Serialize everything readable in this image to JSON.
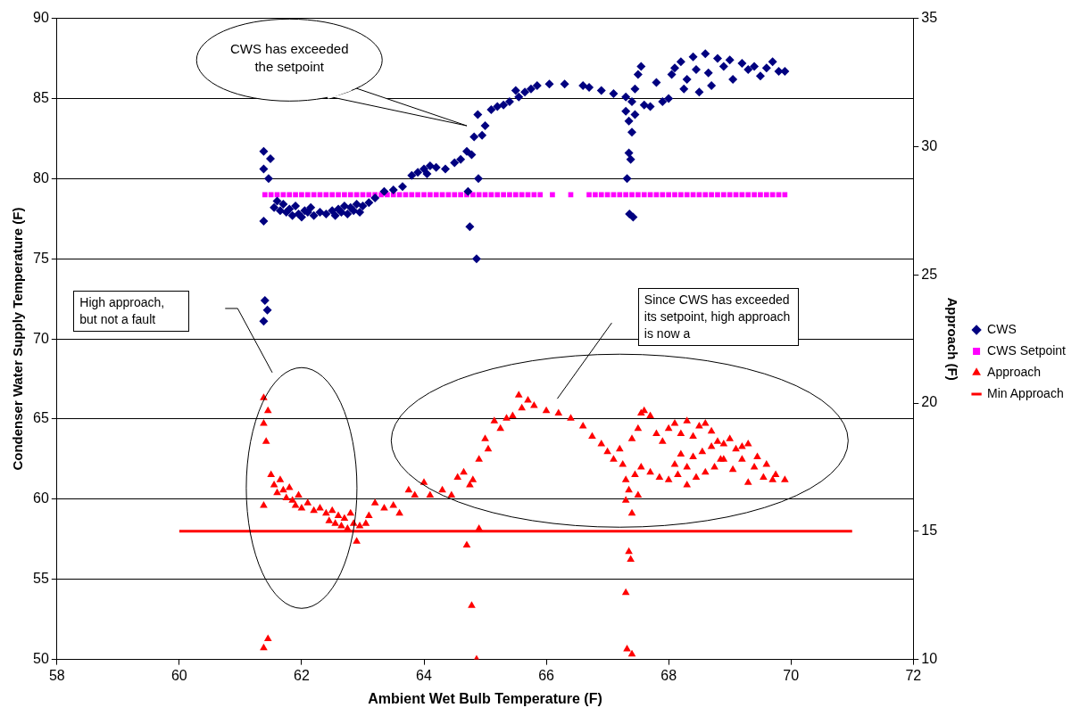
{
  "chart_data": {
    "type": "scatter",
    "xlabel": "Ambient Wet Bulb Temperature (F)",
    "ylabel": "Condenser Water Supply Temperature (F)",
    "y2label": "Approach (F)",
    "xlim": [
      58,
      72
    ],
    "xticks": [
      58,
      60,
      62,
      64,
      66,
      68,
      70,
      72
    ],
    "ylim": [
      50,
      90
    ],
    "yticks": [
      50,
      55,
      60,
      65,
      70,
      75,
      80,
      85,
      90
    ],
    "y2lim": [
      10,
      35
    ],
    "y2ticks": [
      10,
      15,
      20,
      25,
      30,
      35
    ],
    "grid": "y",
    "legend": "right",
    "annotations": [
      "CWS has exceeded the setpoint",
      "High approach, but not a fault",
      "Since CWS has exceeded its setpoint, high approach is now a"
    ],
    "series": [
      {
        "name": "CWS",
        "type": "scatter",
        "marker": "diamond",
        "color": "#000080",
        "x": [
          61.38,
          61.49,
          61.38,
          61.46,
          61.38,
          61.4,
          61.44,
          61.38,
          61.55,
          61.6,
          61.65,
          61.7,
          61.75,
          61.8,
          61.85,
          61.9,
          61.95,
          62.0,
          62.05,
          62.1,
          62.15,
          62.2,
          62.3,
          62.4,
          62.5,
          62.55,
          62.6,
          62.65,
          62.7,
          62.75,
          62.8,
          62.85,
          62.9,
          62.95,
          63.0,
          63.1,
          63.2,
          63.35,
          63.5,
          63.65,
          63.8,
          63.9,
          64.0,
          64.05,
          64.1,
          64.2,
          64.35,
          64.5,
          64.6,
          64.7,
          64.78,
          64.82,
          64.88,
          64.95,
          64.75,
          64.86,
          64.89,
          64.72,
          65.0,
          65.1,
          65.2,
          65.3,
          65.4,
          65.5,
          65.55,
          65.65,
          65.75,
          65.85,
          66.05,
          66.3,
          66.6,
          66.7,
          66.9,
          67.1,
          67.3,
          67.3,
          67.35,
          67.4,
          67.35,
          67.38,
          67.32,
          67.36,
          67.42,
          67.4,
          67.45,
          67.5,
          67.55,
          67.45,
          67.6,
          67.7,
          67.8,
          67.9,
          68.0,
          68.05,
          68.1,
          68.2,
          68.25,
          68.3,
          68.4,
          68.45,
          68.5,
          68.6,
          68.65,
          68.7,
          68.8,
          68.9,
          69.0,
          69.05,
          69.2,
          69.3,
          69.4,
          69.5,
          69.6,
          69.7,
          69.8,
          69.9
        ],
        "values": [
          81.7,
          81.25,
          80.6,
          80.0,
          77.35,
          72.4,
          71.8,
          71.1,
          78.2,
          78.6,
          78.0,
          78.4,
          77.9,
          78.1,
          77.7,
          78.3,
          77.8,
          77.6,
          78.0,
          77.9,
          78.2,
          77.7,
          77.9,
          77.8,
          78.0,
          77.7,
          78.1,
          77.9,
          78.3,
          77.8,
          78.2,
          78.0,
          78.4,
          77.9,
          78.3,
          78.5,
          78.8,
          79.2,
          79.3,
          79.5,
          80.2,
          80.4,
          80.6,
          80.3,
          80.8,
          80.7,
          80.6,
          81.0,
          81.2,
          81.7,
          81.5,
          82.6,
          84.0,
          82.7,
          77.0,
          75.0,
          80.0,
          79.2,
          83.3,
          84.3,
          84.5,
          84.6,
          84.8,
          85.5,
          85.1,
          85.4,
          85.6,
          85.8,
          85.9,
          85.9,
          85.8,
          85.7,
          85.5,
          85.3,
          85.1,
          84.2,
          83.6,
          82.9,
          81.6,
          81.2,
          80.0,
          77.8,
          77.6,
          84.8,
          85.6,
          86.5,
          87.0,
          84.0,
          84.6,
          84.5,
          86.0,
          84.8,
          85.0,
          86.5,
          86.9,
          87.3,
          85.6,
          86.2,
          87.6,
          86.8,
          85.4,
          87.8,
          86.6,
          85.8,
          87.5,
          87.0,
          87.4,
          86.2,
          87.2,
          86.8,
          87.0,
          86.4,
          86.9,
          87.3,
          86.7,
          86.7
        ]
      },
      {
        "name": "CWS Setpoint",
        "type": "scatter",
        "marker": "square",
        "color": "#ff00ff",
        "x": [
          61.4,
          61.5,
          61.6,
          61.7,
          61.8,
          61.9,
          62.0,
          62.1,
          62.2,
          62.3,
          62.4,
          62.5,
          62.6,
          62.7,
          62.8,
          62.9,
          63.0,
          63.1,
          63.2,
          63.3,
          63.4,
          63.5,
          63.6,
          63.7,
          63.8,
          63.9,
          64.0,
          64.1,
          64.2,
          64.3,
          64.4,
          64.5,
          64.6,
          64.7,
          64.8,
          64.9,
          65.0,
          65.1,
          65.2,
          65.3,
          65.4,
          65.5,
          65.6,
          65.7,
          65.8,
          65.9,
          66.1,
          66.4,
          66.7,
          66.8,
          66.9,
          67.0,
          67.1,
          67.2,
          67.3,
          67.4,
          67.5,
          67.6,
          67.7,
          67.8,
          67.9,
          68.0,
          68.1,
          68.2,
          68.3,
          68.4,
          68.5,
          68.6,
          68.7,
          68.8,
          68.9,
          69.0,
          69.1,
          69.2,
          69.3,
          69.4,
          69.5,
          69.6,
          69.7,
          69.8,
          69.9
        ],
        "values": [
          79,
          79,
          79,
          79,
          79,
          79,
          79,
          79,
          79,
          79,
          79,
          79,
          79,
          79,
          79,
          79,
          79,
          79,
          79,
          79,
          79,
          79,
          79,
          79,
          79,
          79,
          79,
          79,
          79,
          79,
          79,
          79,
          79,
          79,
          79,
          79,
          79,
          79,
          79,
          79,
          79,
          79,
          79,
          79,
          79,
          79,
          79,
          79,
          79,
          79,
          79,
          79,
          79,
          79,
          79,
          79,
          79,
          79,
          79,
          79,
          79,
          79,
          79,
          79,
          79,
          79,
          79,
          79,
          79,
          79,
          79,
          79,
          79,
          79,
          79,
          79,
          79,
          79,
          79,
          79,
          79
        ]
      },
      {
        "name": "Approach",
        "type": "scatter",
        "marker": "triangle",
        "color": "#ff0000",
        "axis": "y2",
        "x": [
          61.38,
          61.45,
          61.38,
          61.42,
          61.38,
          61.38,
          61.45,
          61.5,
          61.55,
          61.6,
          61.65,
          61.7,
          61.75,
          61.8,
          61.85,
          61.9,
          61.95,
          62.0,
          62.1,
          62.2,
          62.3,
          62.4,
          62.45,
          62.5,
          62.55,
          62.6,
          62.65,
          62.7,
          62.75,
          62.8,
          62.85,
          62.9,
          62.95,
          63.05,
          63.1,
          63.2,
          63.35,
          63.5,
          63.6,
          63.75,
          63.85,
          64.0,
          64.1,
          64.3,
          64.45,
          64.55,
          64.65,
          64.75,
          64.8,
          64.9,
          65.0,
          65.05,
          65.15,
          65.25,
          65.35,
          65.45,
          65.55,
          65.6,
          65.7,
          65.8,
          66.0,
          66.2,
          64.7,
          64.78,
          64.86,
          64.9,
          66.4,
          66.6,
          66.75,
          66.9,
          67.0,
          67.1,
          67.2,
          67.25,
          67.3,
          67.35,
          67.4,
          67.3,
          67.45,
          67.5,
          67.55,
          67.4,
          67.5,
          67.6,
          67.55,
          67.35,
          67.38,
          67.3,
          67.32,
          67.4,
          67.7,
          67.8,
          67.9,
          68.0,
          68.1,
          68.2,
          68.3,
          68.4,
          68.5,
          68.6,
          68.7,
          68.8,
          68.9,
          69.0,
          69.1,
          69.2,
          69.3,
          69.45,
          69.6,
          69.75,
          69.9,
          67.7,
          67.85,
          68.0,
          68.15,
          68.3,
          68.45,
          68.6,
          68.75,
          68.9,
          69.05,
          69.2,
          69.3,
          69.4,
          69.55,
          69.7,
          68.2,
          68.4,
          68.55,
          68.7,
          68.85,
          68.1,
          68.3
        ],
        "values": [
          20.2,
          19.7,
          19.2,
          18.5,
          16.0,
          10.45,
          10.8,
          17.2,
          16.8,
          16.5,
          17.0,
          16.6,
          16.3,
          16.7,
          16.2,
          16.0,
          16.4,
          15.9,
          16.1,
          15.8,
          15.9,
          15.7,
          15.4,
          15.8,
          15.3,
          15.6,
          15.2,
          15.5,
          15.1,
          15.7,
          15.3,
          14.6,
          15.2,
          15.3,
          15.6,
          16.1,
          15.9,
          16.0,
          15.7,
          16.6,
          16.4,
          16.9,
          16.4,
          16.6,
          16.4,
          17.1,
          17.3,
          16.8,
          17.0,
          17.8,
          18.6,
          18.2,
          19.3,
          19.0,
          19.4,
          19.5,
          20.3,
          19.8,
          20.1,
          19.9,
          19.7,
          19.6,
          14.45,
          12.1,
          10.0,
          15.1,
          19.4,
          19.1,
          18.7,
          18.4,
          18.1,
          17.8,
          18.2,
          17.6,
          16.2,
          16.6,
          15.7,
          17.0,
          17.2,
          16.4,
          17.5,
          18.6,
          19.0,
          19.7,
          19.6,
          14.2,
          13.9,
          12.6,
          10.4,
          10.2,
          19.5,
          18.8,
          18.5,
          19.0,
          19.2,
          18.8,
          19.3,
          18.7,
          19.1,
          19.2,
          18.9,
          18.5,
          18.4,
          18.6,
          18.2,
          18.3,
          18.4,
          17.9,
          17.6,
          17.2,
          17.0,
          17.3,
          17.1,
          17.0,
          17.2,
          16.8,
          17.1,
          17.3,
          17.5,
          17.8,
          17.4,
          17.8,
          16.9,
          17.5,
          17.1,
          17.0,
          18.0,
          17.9,
          18.1,
          18.3,
          17.8,
          17.6,
          17.5
        ]
      },
      {
        "name": "Min Approach",
        "type": "line",
        "marker": "none",
        "color": "#ff0000",
        "axis": "y2",
        "x": [
          60,
          71
        ],
        "values": [
          15,
          15
        ]
      }
    ]
  }
}
